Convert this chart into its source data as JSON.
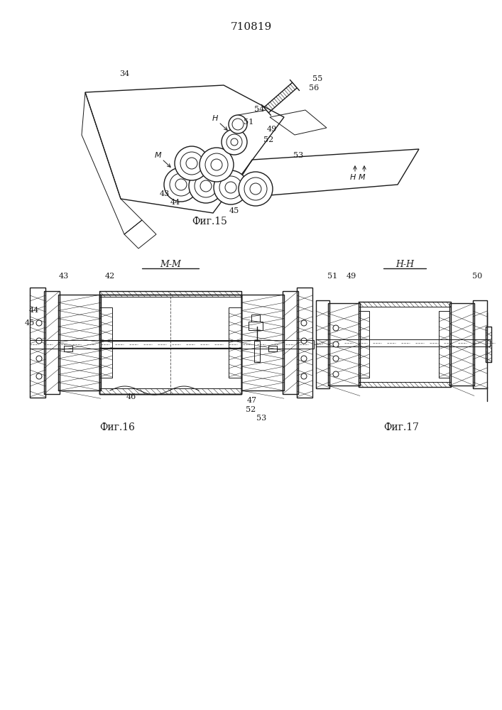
{
  "title_number": "710819",
  "background_color": "#ffffff",
  "line_color": "#1a1a1a",
  "fig15_label": "Фиг.15",
  "fig16_label": "Фиг.16",
  "fig17_label": "Фиг.17",
  "mm_label": "М-М",
  "nn_label": "Н-Н"
}
